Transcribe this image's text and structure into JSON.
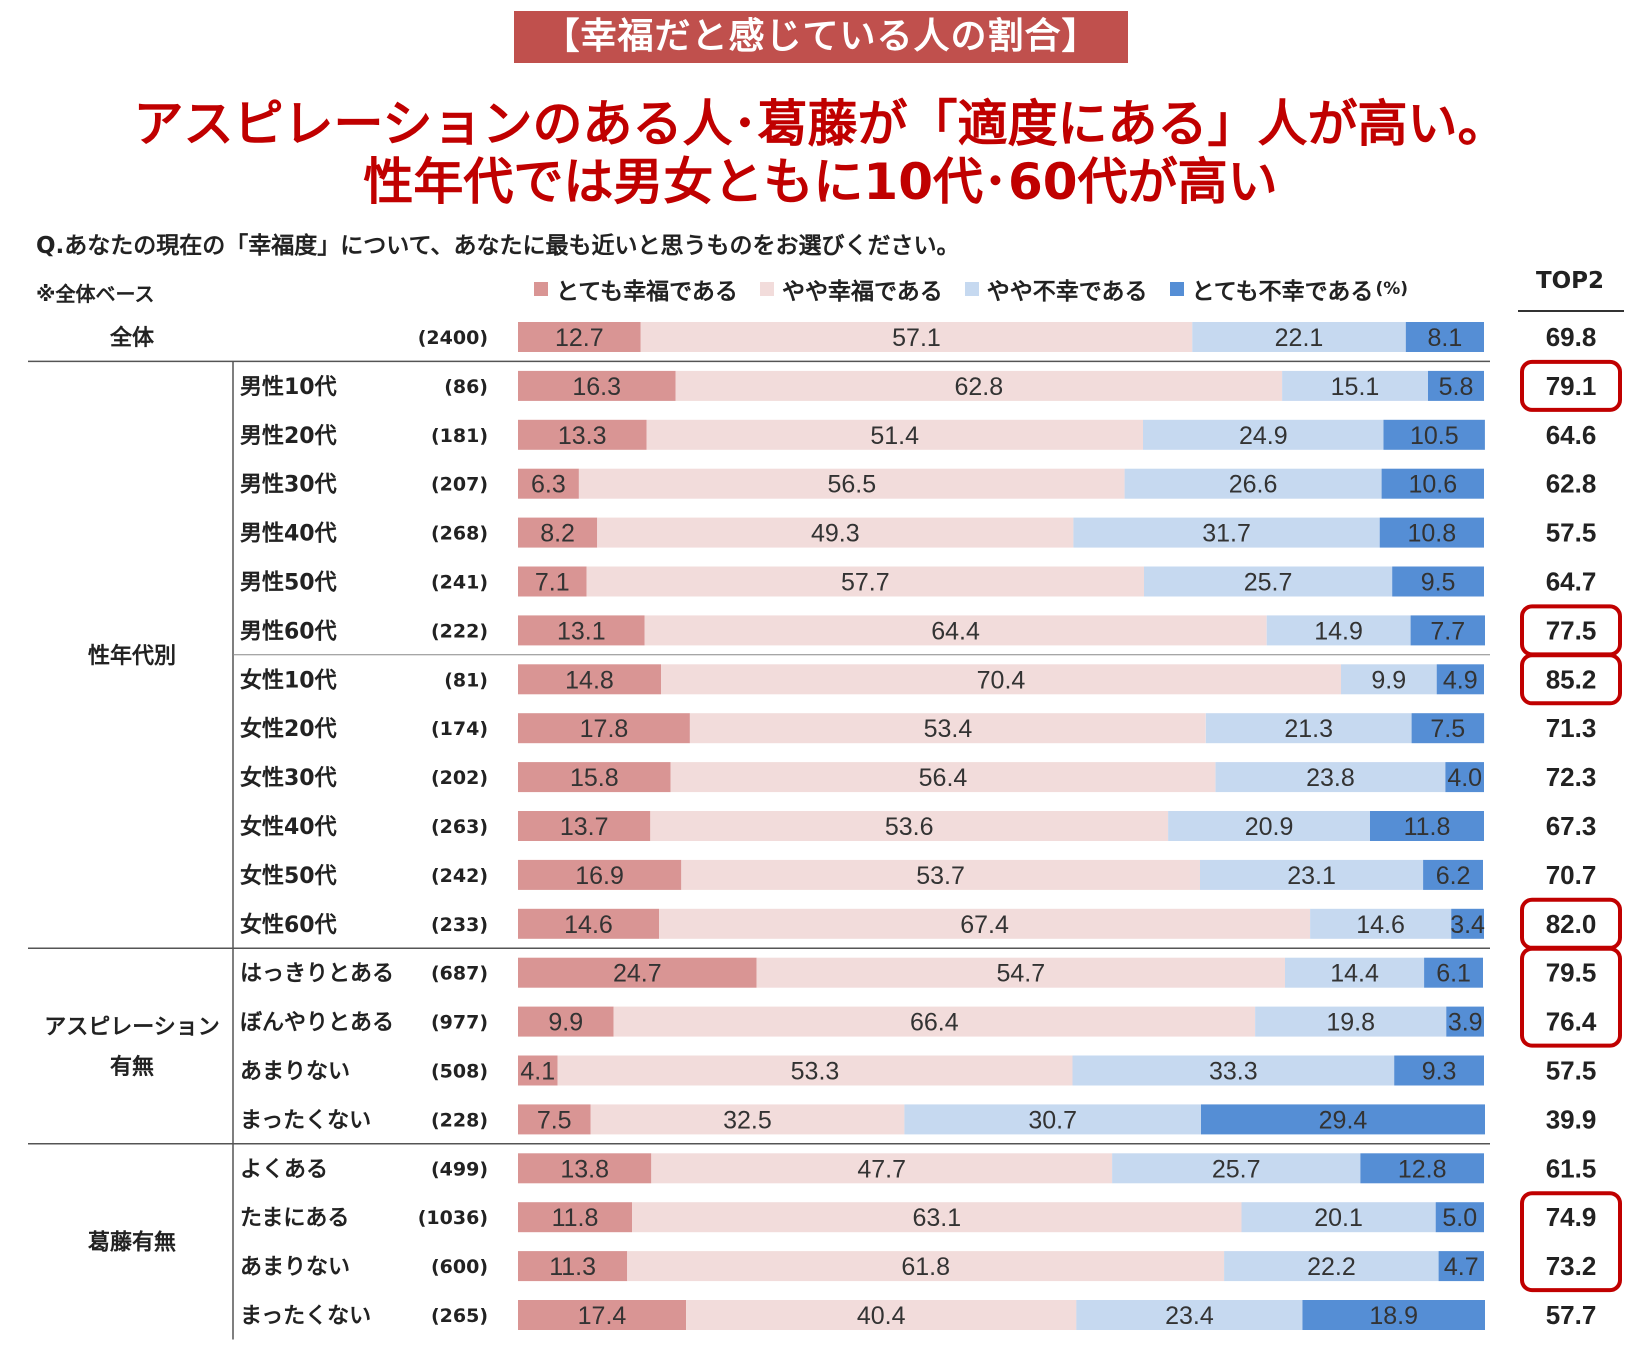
{
  "banner": "【幸福だと感じている人の割合】",
  "headline_line1": "アスピレーションのある人･葛藤が「適度にある」人が高い。",
  "headline_line2": "性年代では男女ともに10代･60代が高い",
  "question": "Q.あなたの現在の「幸福度」について、あなたに最も近いと思うものをお選びください。",
  "base_note": "※全体ベース",
  "chart_data": {
    "type": "bar",
    "orientation": "horizontal",
    "stacked": true,
    "unit": "(%)",
    "xlim": [
      0,
      100
    ],
    "legend_position": "top",
    "top2_header": "TOP2",
    "series": [
      {
        "name": "とても幸福である",
        "color": "#d99594"
      },
      {
        "name": "やや幸福である",
        "color": "#f2dcdb"
      },
      {
        "name": "やや不幸である",
        "color": "#c6d9f0"
      },
      {
        "name": "とても不幸である",
        "color": "#558ed5"
      }
    ],
    "groups": [
      {
        "label": "全体",
        "rows": [
          {
            "label": "",
            "n": "(2400)",
            "values": [
              12.7,
              57.1,
              22.1,
              8.1
            ],
            "top2": "69.8",
            "highlight": false
          }
        ]
      },
      {
        "label": "性年代別",
        "rows": [
          {
            "label": "男性10代",
            "n": "(86)",
            "values": [
              16.3,
              62.8,
              15.1,
              5.8
            ],
            "top2": "79.1",
            "highlight": true
          },
          {
            "label": "男性20代",
            "n": "(181)",
            "values": [
              13.3,
              51.4,
              24.9,
              10.5
            ],
            "top2": "64.6",
            "highlight": false
          },
          {
            "label": "男性30代",
            "n": "(207)",
            "values": [
              6.3,
              56.5,
              26.6,
              10.6
            ],
            "top2": "62.8",
            "highlight": false
          },
          {
            "label": "男性40代",
            "n": "(268)",
            "values": [
              8.2,
              49.3,
              31.7,
              10.8
            ],
            "top2": "57.5",
            "highlight": false
          },
          {
            "label": "男性50代",
            "n": "(241)",
            "values": [
              7.1,
              57.7,
              25.7,
              9.5
            ],
            "top2": "64.7",
            "highlight": false
          },
          {
            "label": "男性60代",
            "n": "(222)",
            "values": [
              13.1,
              64.4,
              14.9,
              7.7
            ],
            "top2": "77.5",
            "highlight": true
          },
          {
            "label": "女性10代",
            "n": "(81)",
            "values": [
              14.8,
              70.4,
              9.9,
              4.9
            ],
            "top2": "85.2",
            "highlight": true
          },
          {
            "label": "女性20代",
            "n": "(174)",
            "values": [
              17.8,
              53.4,
              21.3,
              7.5
            ],
            "top2": "71.3",
            "highlight": false
          },
          {
            "label": "女性30代",
            "n": "(202)",
            "values": [
              15.8,
              56.4,
              23.8,
              4.0
            ],
            "top2": "72.3",
            "highlight": false
          },
          {
            "label": "女性40代",
            "n": "(263)",
            "values": [
              13.7,
              53.6,
              20.9,
              11.8
            ],
            "top2": "67.3",
            "highlight": false
          },
          {
            "label": "女性50代",
            "n": "(242)",
            "values": [
              16.9,
              53.7,
              23.1,
              6.2
            ],
            "top2": "70.7",
            "highlight": false
          },
          {
            "label": "女性60代",
            "n": "(233)",
            "values": [
              14.6,
              67.4,
              14.6,
              3.4
            ],
            "top2": "82.0",
            "highlight": true
          }
        ]
      },
      {
        "label": "アスピレーション有無",
        "rows": [
          {
            "label": "はっきりとある",
            "n": "(687)",
            "values": [
              24.7,
              54.7,
              14.4,
              6.1
            ],
            "top2": "79.5",
            "highlight": true
          },
          {
            "label": "ぼんやりとある",
            "n": "(977)",
            "values": [
              9.9,
              66.4,
              19.8,
              3.9
            ],
            "top2": "76.4",
            "highlight": true
          },
          {
            "label": "あまりない",
            "n": "(508)",
            "values": [
              4.1,
              53.3,
              33.3,
              9.3
            ],
            "top2": "57.5",
            "highlight": false
          },
          {
            "label": "まったくない",
            "n": "(228)",
            "values": [
              7.5,
              32.5,
              30.7,
              29.4
            ],
            "top2": "39.9",
            "highlight": false
          }
        ]
      },
      {
        "label": "葛藤有無",
        "rows": [
          {
            "label": "よくある",
            "n": "(499)",
            "values": [
              13.8,
              47.7,
              25.7,
              12.8
            ],
            "top2": "61.5",
            "highlight": false
          },
          {
            "label": "たまにある",
            "n": "(1036)",
            "values": [
              11.8,
              63.1,
              20.1,
              5.0
            ],
            "top2": "74.9",
            "highlight": true
          },
          {
            "label": "あまりない",
            "n": "(600)",
            "values": [
              11.3,
              61.8,
              22.2,
              4.7
            ],
            "top2": "73.2",
            "highlight": true
          },
          {
            "label": "まったくない",
            "n": "(265)",
            "values": [
              17.4,
              40.4,
              23.4,
              18.9
            ],
            "top2": "57.7",
            "highlight": false
          }
        ]
      }
    ]
  }
}
